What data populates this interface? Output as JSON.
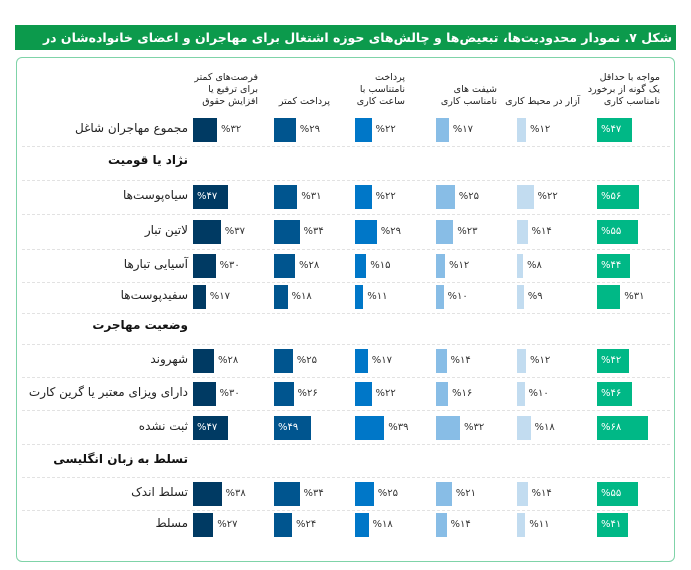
{
  "title": "شکل ۷. نمودار محدودیت‌ها، تبعیض‌ها و چالش‌های حوزه اشتغال برای مهاجران و اعضای خانواده‌شان در آمریکا [۱۱]",
  "chart_data": {
    "type": "bar",
    "title": "شکل ۷. نمودار محدودیت‌ها، تبعیض‌ها و چالش‌های حوزه اشتغال برای مهاجران و اعضای خانواده‌شان در آمریکا [۱۱]",
    "unit": "%",
    "series": [
      {
        "name": "مواجه با حداقل\nیک گونه از برخورد\nنامناسب کاری",
        "color": "#00b886"
      },
      {
        "name": "آزار در محیط کاری",
        "color": "#c2dcf0"
      },
      {
        "name": "شیفت های\nنامناسب کاری",
        "color": "#88bde6"
      },
      {
        "name": "پرداخت\nنامتناسب با\nساعت کاری",
        "color": "#0077c8"
      },
      {
        "name": "پرداخت کمتر",
        "color": "#00558f"
      },
      {
        "name": "فرصت‌های کمتر\nبرای ترفیع یا\nافزایش حقوق",
        "color": "#003a63"
      }
    ],
    "groups": [
      {
        "heading": "",
        "rows": [
          {
            "label": "مجموع مهاجران شاغل",
            "values": [
              47,
              12,
              17,
              22,
              29,
              32
            ],
            "labels": [
              "%۴۷",
              "%۱۲",
              "%۱۷",
              "%۲۲",
              "%۲۹",
              "%۳۲"
            ]
          }
        ]
      },
      {
        "heading": "نژاد یا قومیت",
        "rows": [
          {
            "label": "سیاه‌پوست‌ها",
            "values": [
              56,
              22,
              25,
              22,
              31,
              47
            ],
            "labels": [
              "%۵۶",
              "%۲۲",
              "%۲۵",
              "%۲۲",
              "%۳۱",
              "%۴۷"
            ]
          },
          {
            "label": "لاتین تبار",
            "values": [
              55,
              14,
              23,
              29,
              34,
              37
            ],
            "labels": [
              "%۵۵",
              "%۱۴",
              "%۲۳",
              "%۲۹",
              "%۳۴",
              "%۳۷"
            ]
          },
          {
            "label": "آسیایی تبارها",
            "values": [
              44,
              8,
              12,
              15,
              28,
              30
            ],
            "labels": [
              "%۴۴",
              "%۸",
              "%۱۲",
              "%۱۵",
              "%۲۸",
              "%۳۰"
            ]
          },
          {
            "label": "سفیدپوست‌ها",
            "values": [
              31,
              9,
              10,
              11,
              18,
              17
            ],
            "labels": [
              "%۳۱",
              "%۹",
              "%۱۰",
              "%۱۱",
              "%۱۸",
              "%۱۷"
            ]
          }
        ]
      },
      {
        "heading": "وضعیت مهاجرت",
        "rows": [
          {
            "label": "شهروند",
            "values": [
              42,
              12,
              14,
              17,
              25,
              28
            ],
            "labels": [
              "%۴۲",
              "%۱۲",
              "%۱۴",
              "%۱۷",
              "%۲۵",
              "%۲۸"
            ]
          },
          {
            "label": "دارای ویزای معتبر یا گرین کارت",
            "values": [
              46,
              10,
              16,
              22,
              26,
              30
            ],
            "labels": [
              "%۴۶",
              "%۱۰",
              "%۱۶",
              "%۲۲",
              "%۲۶",
              "%۳۰"
            ]
          },
          {
            "label": "ثبت نشده",
            "values": [
              68,
              18,
              32,
              39,
              49,
              47
            ],
            "labels": [
              "%۶۸",
              "%۱۸",
              "%۳۲",
              "%۳۹",
              "%۴۹",
              "%۴۷"
            ]
          }
        ]
      },
      {
        "heading": "تسلط به زبان انگلیسی",
        "rows": [
          {
            "label": "تسلط اندک",
            "values": [
              55,
              14,
              21,
              25,
              34,
              38
            ],
            "labels": [
              "%۵۵",
              "%۱۴",
              "%۲۱",
              "%۲۵",
              "%۳۴",
              "%۳۸"
            ]
          },
          {
            "label": "مسلط",
            "values": [
              41,
              11,
              14,
              18,
              24,
              27
            ],
            "labels": [
              "%۴۱",
              "%۱۱",
              "%۱۴",
              "%۱۸",
              "%۲۴",
              "%۲۷"
            ]
          }
        ]
      }
    ]
  }
}
